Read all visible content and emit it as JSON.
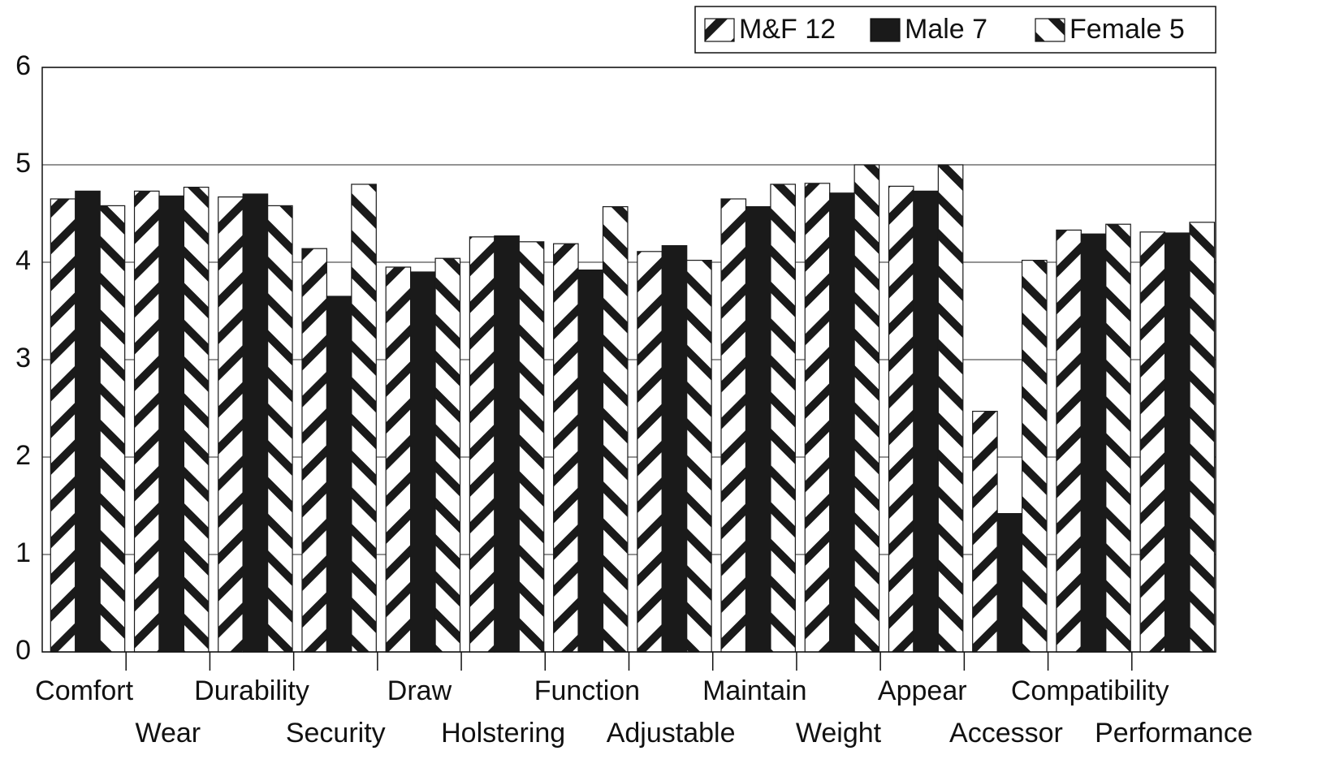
{
  "chart_data": {
    "type": "bar",
    "categories": [
      "Comfort",
      "Wear",
      "Durability",
      "Security",
      "Draw",
      "Holstering",
      "Function",
      "Adjustable",
      "Maintain",
      "Weight",
      "Appear",
      "Accessor",
      "Compatibility",
      "Performance"
    ],
    "series": [
      {
        "name": "M&F 12",
        "color": "#1a1a1a",
        "hatch": "forward-diagonal",
        "values": [
          4.65,
          4.73,
          4.67,
          4.14,
          3.95,
          4.26,
          4.19,
          4.11,
          4.65,
          4.81,
          4.78,
          2.47,
          4.33,
          4.31
        ]
      },
      {
        "name": "Male 7",
        "color": "#1a1a1a",
        "hatch": "solid",
        "values": [
          4.73,
          4.68,
          4.7,
          3.65,
          3.9,
          4.27,
          3.92,
          4.17,
          4.57,
          4.71,
          4.73,
          1.42,
          4.29,
          4.3
        ]
      },
      {
        "name": "Female 5",
        "color": "#1a1a1a",
        "hatch": "backward-diagonal",
        "values": [
          4.58,
          4.77,
          4.58,
          4.8,
          4.04,
          4.21,
          4.57,
          4.02,
          4.8,
          5.0,
          5.0,
          4.02,
          4.39,
          4.41
        ]
      }
    ],
    "ylim": [
      0,
      6
    ],
    "yticks": [
      0,
      1,
      2,
      3,
      4,
      5,
      6
    ],
    "grid": true,
    "legend": "top-right"
  }
}
